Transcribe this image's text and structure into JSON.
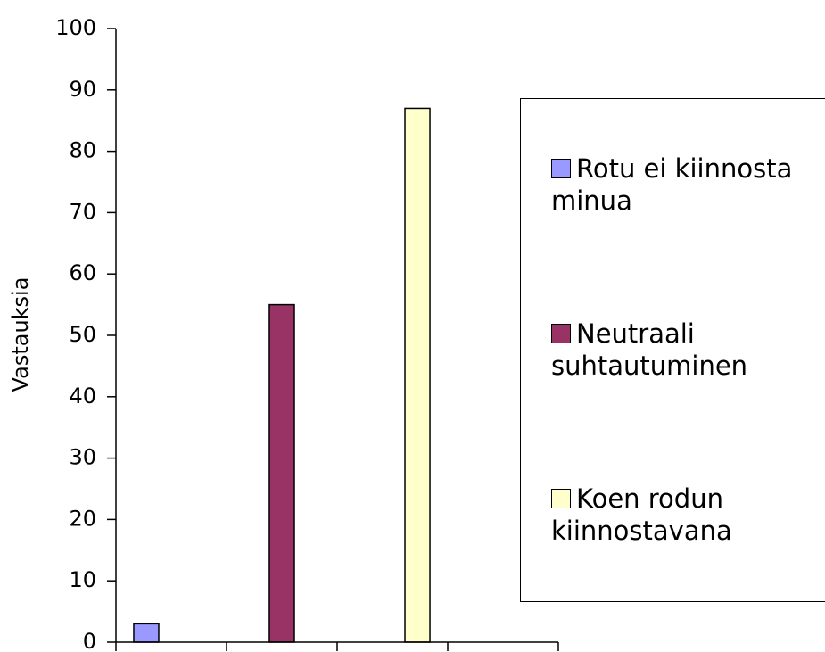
{
  "chart_data": {
    "type": "bar",
    "y_label": "Vastauksia",
    "categories": [
      null,
      null,
      null,
      null
    ],
    "series": [
      {
        "name": "Rotu ei kiinnosta minua",
        "color": "#9999ff",
        "values": [
          3,
          null,
          null,
          null
        ]
      },
      {
        "name": "Neutraali suhtautuminen",
        "color": "#993366",
        "values": [
          null,
          55,
          null,
          null
        ]
      },
      {
        "name": "Koen rodun kiinnostavana",
        "color": "#ffffcc",
        "values": [
          null,
          null,
          87,
          null
        ]
      }
    ],
    "ylim": [
      0,
      100
    ],
    "yticks": [
      0,
      10,
      20,
      30,
      40,
      50,
      60,
      70,
      80,
      90,
      100
    ],
    "grid": false
  }
}
